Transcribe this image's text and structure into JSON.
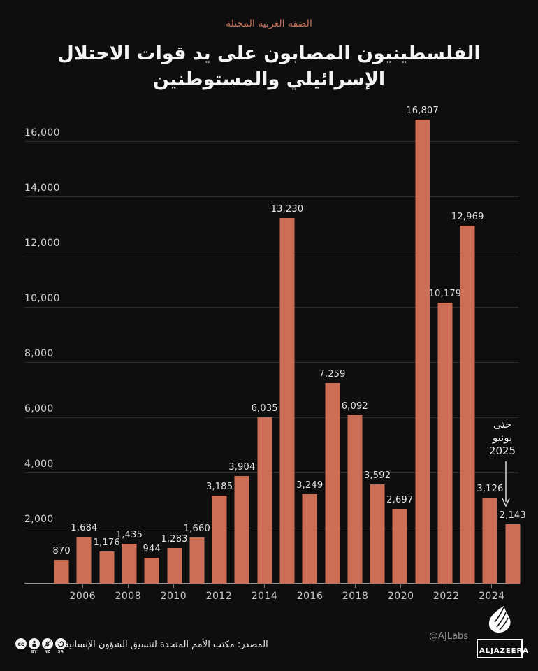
{
  "header": {
    "kicker": "الضفة الغربية المحتلة",
    "title_line1": "الفلسطينيون المصابون على يد قوات الاحتلال",
    "title_line2": "الإسرائيلي والمستوطنين"
  },
  "chart_data": {
    "type": "bar",
    "title": "الفلسطينيون المصابون على يد قوات الاحتلال الإسرائيلي والمستوطنين",
    "kicker": "الضفة الغربية المحتلة",
    "categories": [
      2005,
      2006,
      2007,
      2008,
      2009,
      2010,
      2011,
      2012,
      2013,
      2014,
      2015,
      2016,
      2017,
      2018,
      2019,
      2020,
      2021,
      2022,
      2023,
      2024,
      2025
    ],
    "values": [
      870,
      1684,
      1176,
      1435,
      944,
      1283,
      1660,
      3185,
      3904,
      6035,
      13230,
      3249,
      7259,
      6092,
      3592,
      2697,
      16807,
      10179,
      12969,
      3126,
      2143
    ],
    "value_labels": [
      "870",
      "1,684",
      "1,176",
      "1,435",
      "944",
      "1,283",
      "1,660",
      "3,185",
      "3,904",
      "6,035",
      "13,230",
      "3,249",
      "7,259",
      "6,092",
      "3,592",
      "2,697",
      "16,807",
      "10,179",
      "12,969",
      "3,126",
      "2,143"
    ],
    "bar_color": "#cc6d55",
    "ylim": [
      0,
      16000
    ],
    "yticks": [
      2000,
      4000,
      6000,
      8000,
      10000,
      12000,
      14000,
      16000
    ],
    "ytick_labels": [
      "2,000",
      "4,000",
      "6,000",
      "8,000",
      "10,000",
      "12,000",
      "14,000",
      "16,000"
    ],
    "xticks": [
      "2006",
      "2008",
      "2010",
      "2012",
      "2014",
      "2016",
      "2018",
      "2020",
      "2022",
      "2024"
    ],
    "grid": true,
    "legend": "none",
    "annotation": {
      "lines": [
        "حتى",
        "يونيو",
        "2025"
      ],
      "points_to": "2025"
    }
  },
  "footer": {
    "license_icons": [
      "cc-icon",
      "by-icon",
      "nc-icon",
      "sa-icon"
    ],
    "license_labels": [
      "BY",
      "NC",
      "SA"
    ],
    "source": "المصدر: مكتب الأمم المتحدة لتنسيق الشؤون الإنسانية",
    "credit": "@AJLabs",
    "logo_text": "ALJAZEERA"
  }
}
